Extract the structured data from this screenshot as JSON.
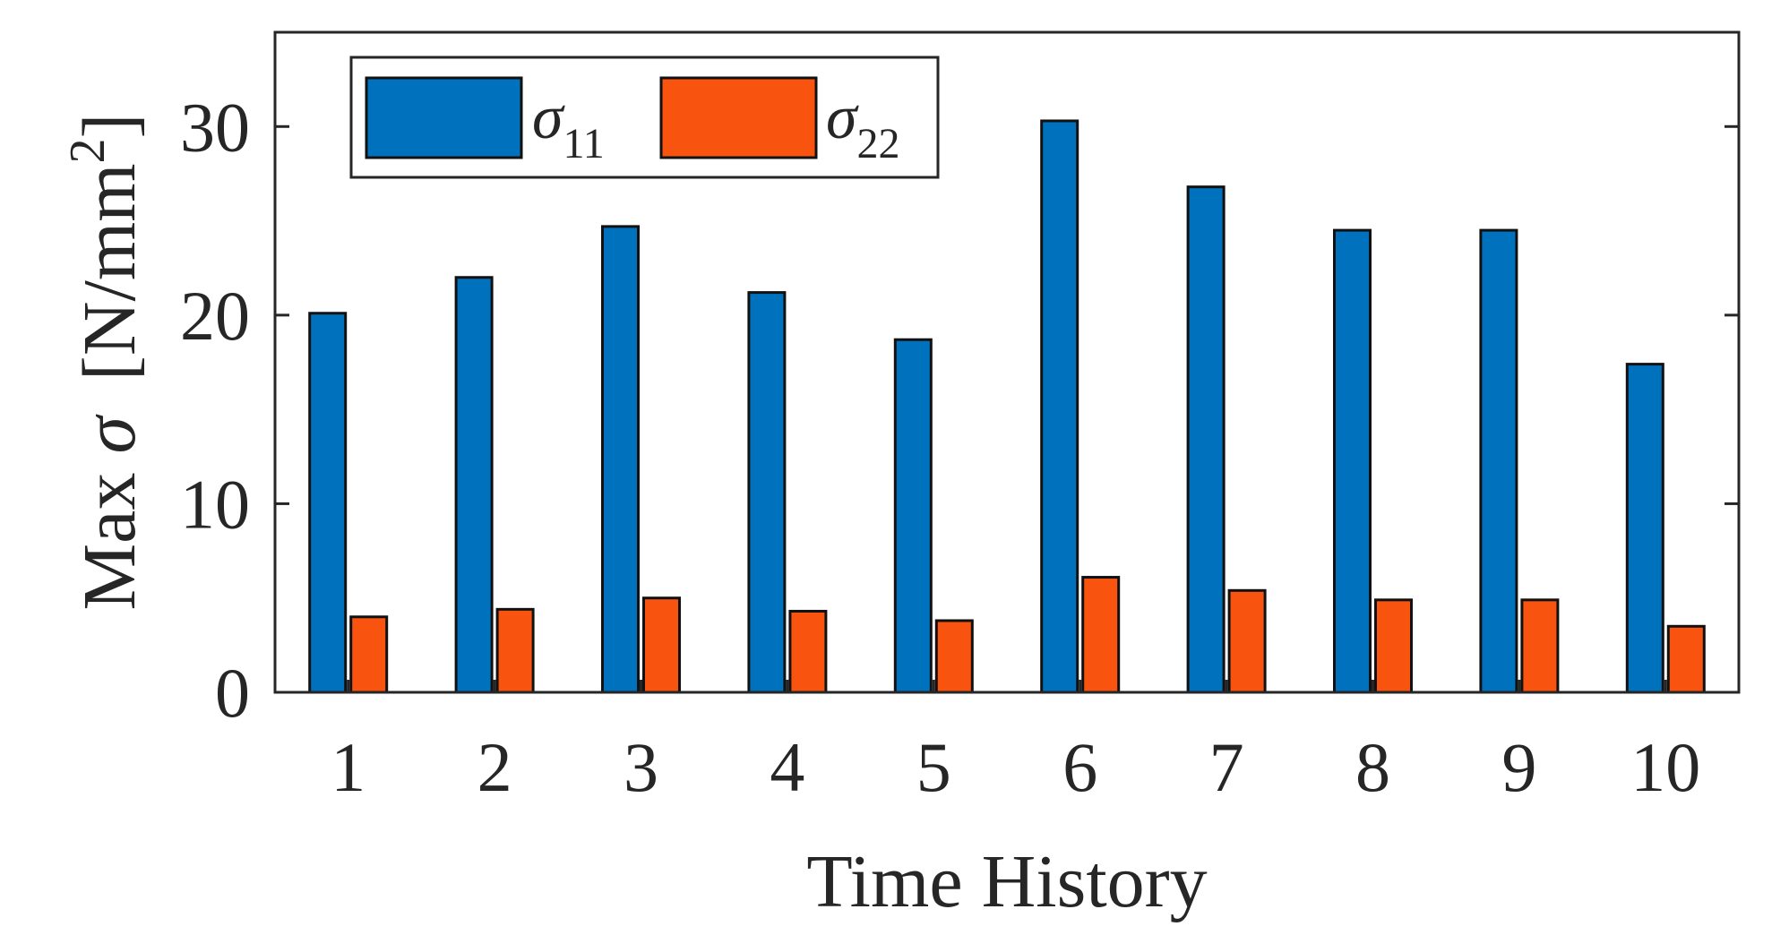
{
  "chart_data": {
    "type": "bar",
    "title": "",
    "xlabel": "Time History",
    "ylabel": {
      "prefix": "Max ",
      "symbol": "σ",
      "unit_open": "[N/mm",
      "unit_sup": "2",
      "unit_close": "]"
    },
    "categories": [
      "1",
      "2",
      "3",
      "4",
      "5",
      "6",
      "7",
      "8",
      "9",
      "10"
    ],
    "series": [
      {
        "name": "σ11",
        "name_symbol": "σ",
        "name_sub": "11",
        "color": "#0072BD",
        "values": [
          20.1,
          22.0,
          24.7,
          21.2,
          18.7,
          30.3,
          26.8,
          24.5,
          24.5,
          17.4
        ]
      },
      {
        "name": "σ22",
        "name_symbol": "σ",
        "name_sub": "22",
        "color": "#F9540F",
        "values": [
          4.0,
          4.4,
          5.0,
          4.3,
          3.8,
          6.1,
          5.4,
          4.9,
          4.9,
          3.5
        ]
      }
    ],
    "ylim": [
      0,
      35
    ],
    "yticks": [
      "0",
      "10",
      "20",
      "30"
    ],
    "ytick_values": [
      0,
      10,
      20,
      30
    ],
    "grid": false,
    "legend_position": "top-left"
  }
}
